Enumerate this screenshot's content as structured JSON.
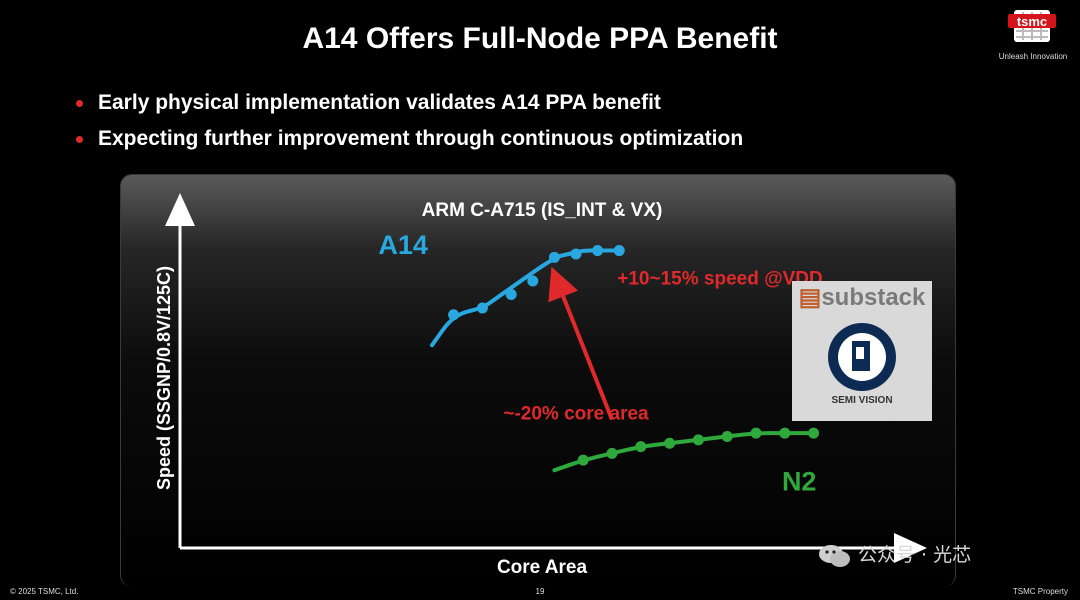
{
  "slide": {
    "title": "A14 Offers Full-Node PPA Benefit",
    "bullets": [
      "Early physical implementation validates A14 PPA benefit",
      "Expecting further improvement through continuous optimization"
    ],
    "bullet_color": "#e0292b"
  },
  "logo": {
    "wordmark": "tsmc",
    "tagline": "Unleash Innovation"
  },
  "footer": {
    "left": "© 2025 TSMC, Ltd.",
    "page": "19",
    "right": "TSMC Property"
  },
  "watermark_badge": {
    "name": "substack",
    "sub": "SEMI VISION"
  },
  "watermark_text": "公众号 · 光芯",
  "chart_data": {
    "type": "line",
    "title": "ARM C-A715 (IS_INT & VX)",
    "xlabel": "Core Area",
    "ylabel": "Speed (SSGNP/0.8V/125C)",
    "xlim": [
      0,
      100
    ],
    "ylim": [
      0,
      100
    ],
    "grid": false,
    "series": [
      {
        "name": "A14",
        "color": "#29a8e0",
        "label_pos": [
          31,
          87
        ],
        "points": [
          [
            35,
            60
          ],
          [
            38,
            69
          ],
          [
            42,
            71
          ],
          [
            44,
            74
          ],
          [
            46,
            77
          ],
          [
            52,
            86
          ],
          [
            54,
            87
          ],
          [
            56,
            88
          ],
          [
            58,
            88
          ],
          [
            61,
            88
          ]
        ],
        "markers": [
          [
            38,
            69
          ],
          [
            42,
            71
          ],
          [
            46,
            75
          ],
          [
            49,
            79
          ],
          [
            52,
            86
          ],
          [
            55,
            87
          ],
          [
            58,
            88
          ],
          [
            61,
            88
          ]
        ]
      },
      {
        "name": "N2",
        "color": "#2fa83c",
        "label_pos": [
          86,
          17
        ],
        "points": [
          [
            52,
            23
          ],
          [
            56,
            26
          ],
          [
            60,
            28
          ],
          [
            64,
            30
          ],
          [
            68,
            31
          ],
          [
            72,
            32
          ],
          [
            76,
            33
          ],
          [
            80,
            34
          ],
          [
            84,
            34
          ],
          [
            88,
            34
          ]
        ],
        "markers": [
          [
            56,
            26
          ],
          [
            60,
            28
          ],
          [
            64,
            30
          ],
          [
            68,
            31
          ],
          [
            72,
            32
          ],
          [
            76,
            33
          ],
          [
            80,
            34
          ],
          [
            84,
            34
          ],
          [
            88,
            34
          ]
        ]
      }
    ],
    "annotations": [
      {
        "text": "+10~15% speed @VDD",
        "color": "#e0292b",
        "at": [
          75,
          78
        ]
      },
      {
        "text": "~-20% core area",
        "color": "#e0292b",
        "at": [
          55,
          38
        ]
      }
    ],
    "arrow": {
      "from": [
        60,
        38
      ],
      "to": [
        52,
        81
      ],
      "color": "#e0292b"
    }
  }
}
